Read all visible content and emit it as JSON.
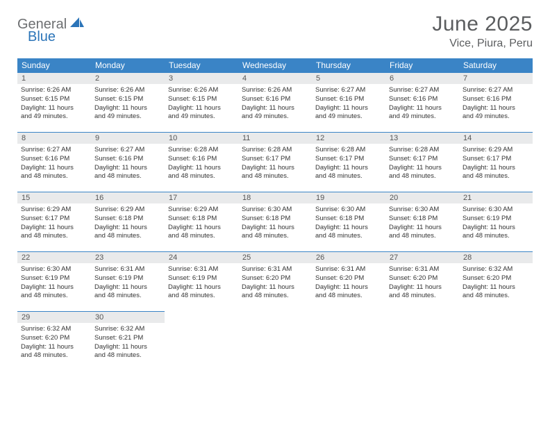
{
  "logo": {
    "text1": "General",
    "text2": "Blue"
  },
  "title": "June 2025",
  "location": "Vice, Piura, Peru",
  "colors": {
    "header_bg": "#3a84c6",
    "header_text": "#ffffff",
    "daynum_bg": "#e9eaeb",
    "logo_gray": "#6d6f71",
    "logo_blue": "#2b74b8",
    "title_color": "#5b5d5f",
    "border": "#3a84c6"
  },
  "weekdays": [
    "Sunday",
    "Monday",
    "Tuesday",
    "Wednesday",
    "Thursday",
    "Friday",
    "Saturday"
  ],
  "days": [
    {
      "n": "1",
      "sunrise": "Sunrise: 6:26 AM",
      "sunset": "Sunset: 6:15 PM",
      "day1": "Daylight: 11 hours",
      "day2": "and 49 minutes."
    },
    {
      "n": "2",
      "sunrise": "Sunrise: 6:26 AM",
      "sunset": "Sunset: 6:15 PM",
      "day1": "Daylight: 11 hours",
      "day2": "and 49 minutes."
    },
    {
      "n": "3",
      "sunrise": "Sunrise: 6:26 AM",
      "sunset": "Sunset: 6:15 PM",
      "day1": "Daylight: 11 hours",
      "day2": "and 49 minutes."
    },
    {
      "n": "4",
      "sunrise": "Sunrise: 6:26 AM",
      "sunset": "Sunset: 6:16 PM",
      "day1": "Daylight: 11 hours",
      "day2": "and 49 minutes."
    },
    {
      "n": "5",
      "sunrise": "Sunrise: 6:27 AM",
      "sunset": "Sunset: 6:16 PM",
      "day1": "Daylight: 11 hours",
      "day2": "and 49 minutes."
    },
    {
      "n": "6",
      "sunrise": "Sunrise: 6:27 AM",
      "sunset": "Sunset: 6:16 PM",
      "day1": "Daylight: 11 hours",
      "day2": "and 49 minutes."
    },
    {
      "n": "7",
      "sunrise": "Sunrise: 6:27 AM",
      "sunset": "Sunset: 6:16 PM",
      "day1": "Daylight: 11 hours",
      "day2": "and 49 minutes."
    },
    {
      "n": "8",
      "sunrise": "Sunrise: 6:27 AM",
      "sunset": "Sunset: 6:16 PM",
      "day1": "Daylight: 11 hours",
      "day2": "and 48 minutes."
    },
    {
      "n": "9",
      "sunrise": "Sunrise: 6:27 AM",
      "sunset": "Sunset: 6:16 PM",
      "day1": "Daylight: 11 hours",
      "day2": "and 48 minutes."
    },
    {
      "n": "10",
      "sunrise": "Sunrise: 6:28 AM",
      "sunset": "Sunset: 6:16 PM",
      "day1": "Daylight: 11 hours",
      "day2": "and 48 minutes."
    },
    {
      "n": "11",
      "sunrise": "Sunrise: 6:28 AM",
      "sunset": "Sunset: 6:17 PM",
      "day1": "Daylight: 11 hours",
      "day2": "and 48 minutes."
    },
    {
      "n": "12",
      "sunrise": "Sunrise: 6:28 AM",
      "sunset": "Sunset: 6:17 PM",
      "day1": "Daylight: 11 hours",
      "day2": "and 48 minutes."
    },
    {
      "n": "13",
      "sunrise": "Sunrise: 6:28 AM",
      "sunset": "Sunset: 6:17 PM",
      "day1": "Daylight: 11 hours",
      "day2": "and 48 minutes."
    },
    {
      "n": "14",
      "sunrise": "Sunrise: 6:29 AM",
      "sunset": "Sunset: 6:17 PM",
      "day1": "Daylight: 11 hours",
      "day2": "and 48 minutes."
    },
    {
      "n": "15",
      "sunrise": "Sunrise: 6:29 AM",
      "sunset": "Sunset: 6:17 PM",
      "day1": "Daylight: 11 hours",
      "day2": "and 48 minutes."
    },
    {
      "n": "16",
      "sunrise": "Sunrise: 6:29 AM",
      "sunset": "Sunset: 6:18 PM",
      "day1": "Daylight: 11 hours",
      "day2": "and 48 minutes."
    },
    {
      "n": "17",
      "sunrise": "Sunrise: 6:29 AM",
      "sunset": "Sunset: 6:18 PM",
      "day1": "Daylight: 11 hours",
      "day2": "and 48 minutes."
    },
    {
      "n": "18",
      "sunrise": "Sunrise: 6:30 AM",
      "sunset": "Sunset: 6:18 PM",
      "day1": "Daylight: 11 hours",
      "day2": "and 48 minutes."
    },
    {
      "n": "19",
      "sunrise": "Sunrise: 6:30 AM",
      "sunset": "Sunset: 6:18 PM",
      "day1": "Daylight: 11 hours",
      "day2": "and 48 minutes."
    },
    {
      "n": "20",
      "sunrise": "Sunrise: 6:30 AM",
      "sunset": "Sunset: 6:18 PM",
      "day1": "Daylight: 11 hours",
      "day2": "and 48 minutes."
    },
    {
      "n": "21",
      "sunrise": "Sunrise: 6:30 AM",
      "sunset": "Sunset: 6:19 PM",
      "day1": "Daylight: 11 hours",
      "day2": "and 48 minutes."
    },
    {
      "n": "22",
      "sunrise": "Sunrise: 6:30 AM",
      "sunset": "Sunset: 6:19 PM",
      "day1": "Daylight: 11 hours",
      "day2": "and 48 minutes."
    },
    {
      "n": "23",
      "sunrise": "Sunrise: 6:31 AM",
      "sunset": "Sunset: 6:19 PM",
      "day1": "Daylight: 11 hours",
      "day2": "and 48 minutes."
    },
    {
      "n": "24",
      "sunrise": "Sunrise: 6:31 AM",
      "sunset": "Sunset: 6:19 PM",
      "day1": "Daylight: 11 hours",
      "day2": "and 48 minutes."
    },
    {
      "n": "25",
      "sunrise": "Sunrise: 6:31 AM",
      "sunset": "Sunset: 6:20 PM",
      "day1": "Daylight: 11 hours",
      "day2": "and 48 minutes."
    },
    {
      "n": "26",
      "sunrise": "Sunrise: 6:31 AM",
      "sunset": "Sunset: 6:20 PM",
      "day1": "Daylight: 11 hours",
      "day2": "and 48 minutes."
    },
    {
      "n": "27",
      "sunrise": "Sunrise: 6:31 AM",
      "sunset": "Sunset: 6:20 PM",
      "day1": "Daylight: 11 hours",
      "day2": "and 48 minutes."
    },
    {
      "n": "28",
      "sunrise": "Sunrise: 6:32 AM",
      "sunset": "Sunset: 6:20 PM",
      "day1": "Daylight: 11 hours",
      "day2": "and 48 minutes."
    },
    {
      "n": "29",
      "sunrise": "Sunrise: 6:32 AM",
      "sunset": "Sunset: 6:20 PM",
      "day1": "Daylight: 11 hours",
      "day2": "and 48 minutes."
    },
    {
      "n": "30",
      "sunrise": "Sunrise: 6:32 AM",
      "sunset": "Sunset: 6:21 PM",
      "day1": "Daylight: 11 hours",
      "day2": "and 48 minutes."
    }
  ]
}
